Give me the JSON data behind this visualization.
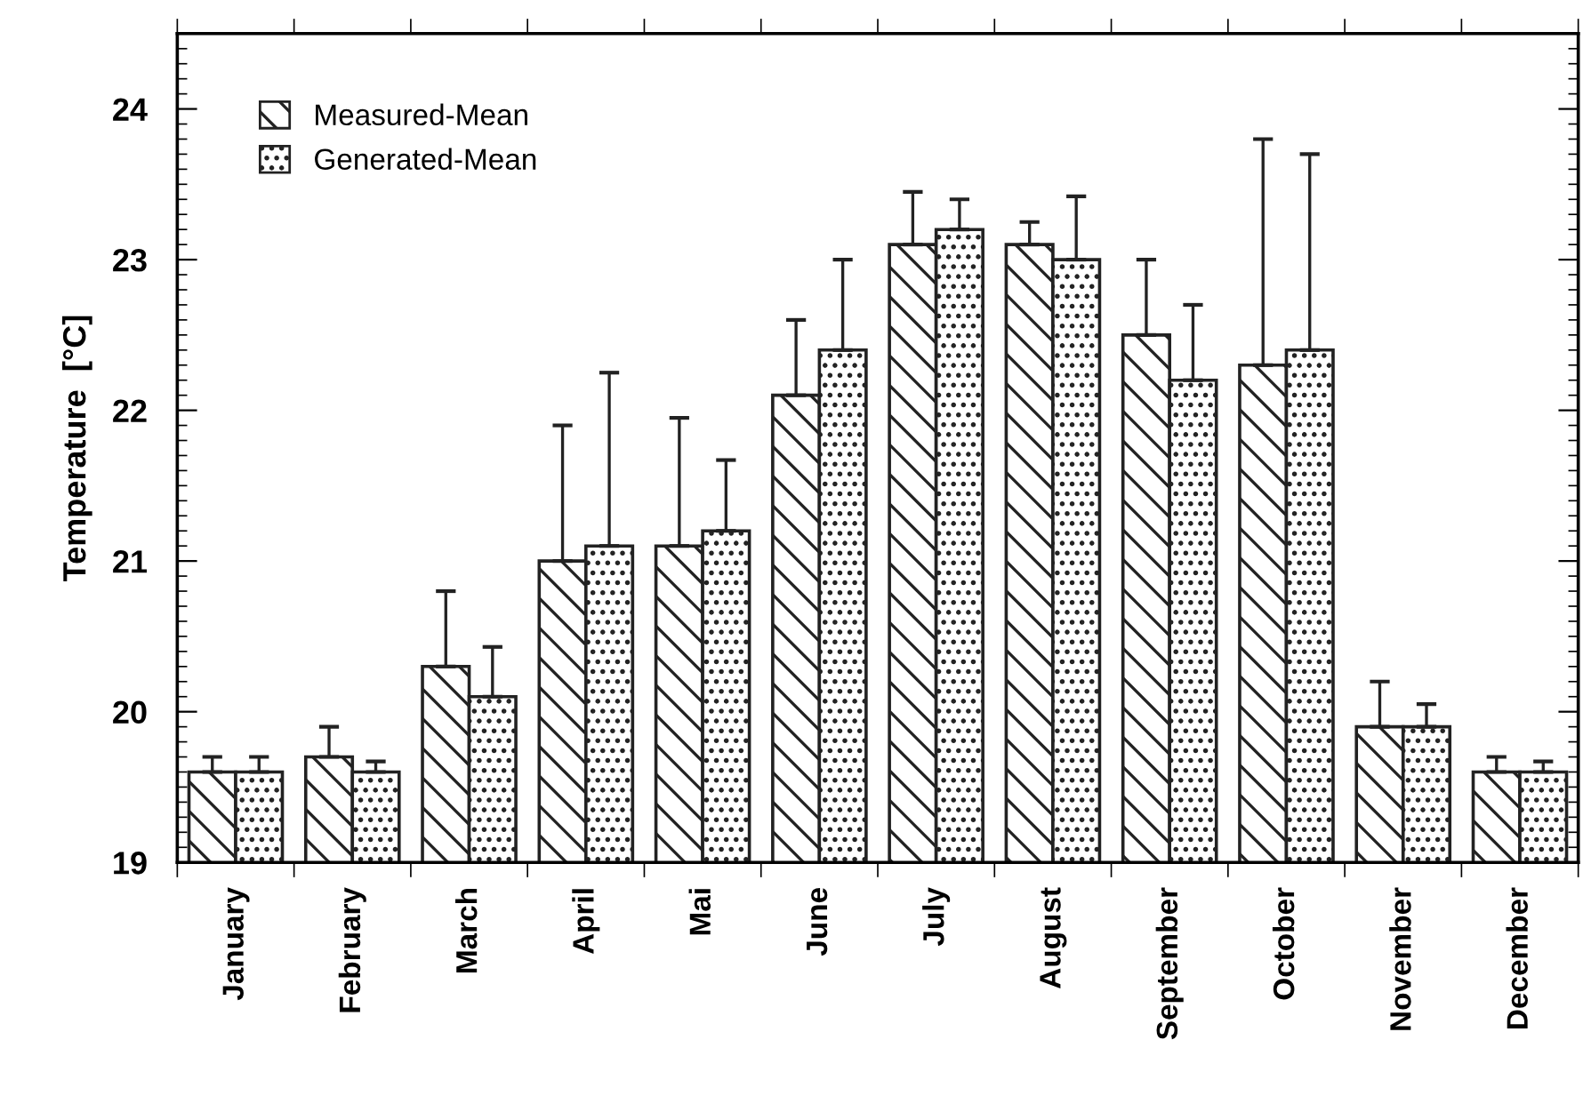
{
  "chart_data": {
    "type": "bar",
    "ylabel": "Temperature  [°C]",
    "categories": [
      "January",
      "February",
      "March",
      "April",
      "Mai",
      "June",
      "July",
      "August",
      "September",
      "October",
      "November",
      "December"
    ],
    "series": [
      {
        "name": "Measured-Mean",
        "color": "#222222",
        "values": [
          19.6,
          19.7,
          20.3,
          21.0,
          21.1,
          22.1,
          23.1,
          23.1,
          22.5,
          22.3,
          19.9,
          19.6
        ],
        "errors": [
          [
            19.6,
            19.7
          ],
          [
            19.7,
            19.9
          ],
          [
            20.3,
            20.8
          ],
          [
            21.0,
            21.9
          ],
          [
            21.1,
            21.95
          ],
          [
            22.1,
            22.6
          ],
          [
            23.1,
            23.45
          ],
          [
            23.1,
            23.25
          ],
          [
            22.5,
            23.0
          ],
          [
            22.3,
            23.8
          ],
          [
            19.9,
            20.2
          ],
          [
            19.6,
            19.7
          ]
        ]
      },
      {
        "name": "Generated-Mean",
        "color": "#222222",
        "values": [
          19.6,
          19.6,
          20.1,
          21.1,
          21.2,
          22.4,
          23.2,
          23.0,
          22.2,
          22.4,
          19.9,
          19.6
        ],
        "errors": [
          [
            19.6,
            19.7
          ],
          [
            19.6,
            19.67
          ],
          [
            20.1,
            20.43
          ],
          [
            21.1,
            22.25
          ],
          [
            21.2,
            21.67
          ],
          [
            22.4,
            23.0
          ],
          [
            23.2,
            23.4
          ],
          [
            23.0,
            23.42
          ],
          [
            22.2,
            22.7
          ],
          [
            22.4,
            23.7
          ],
          [
            19.9,
            20.05
          ],
          [
            19.6,
            19.67
          ]
        ]
      }
    ],
    "ylim": [
      19,
      24.5
    ],
    "yticks": [
      19,
      20,
      21,
      22,
      23,
      24
    ],
    "grid": false,
    "legend": "top left"
  }
}
